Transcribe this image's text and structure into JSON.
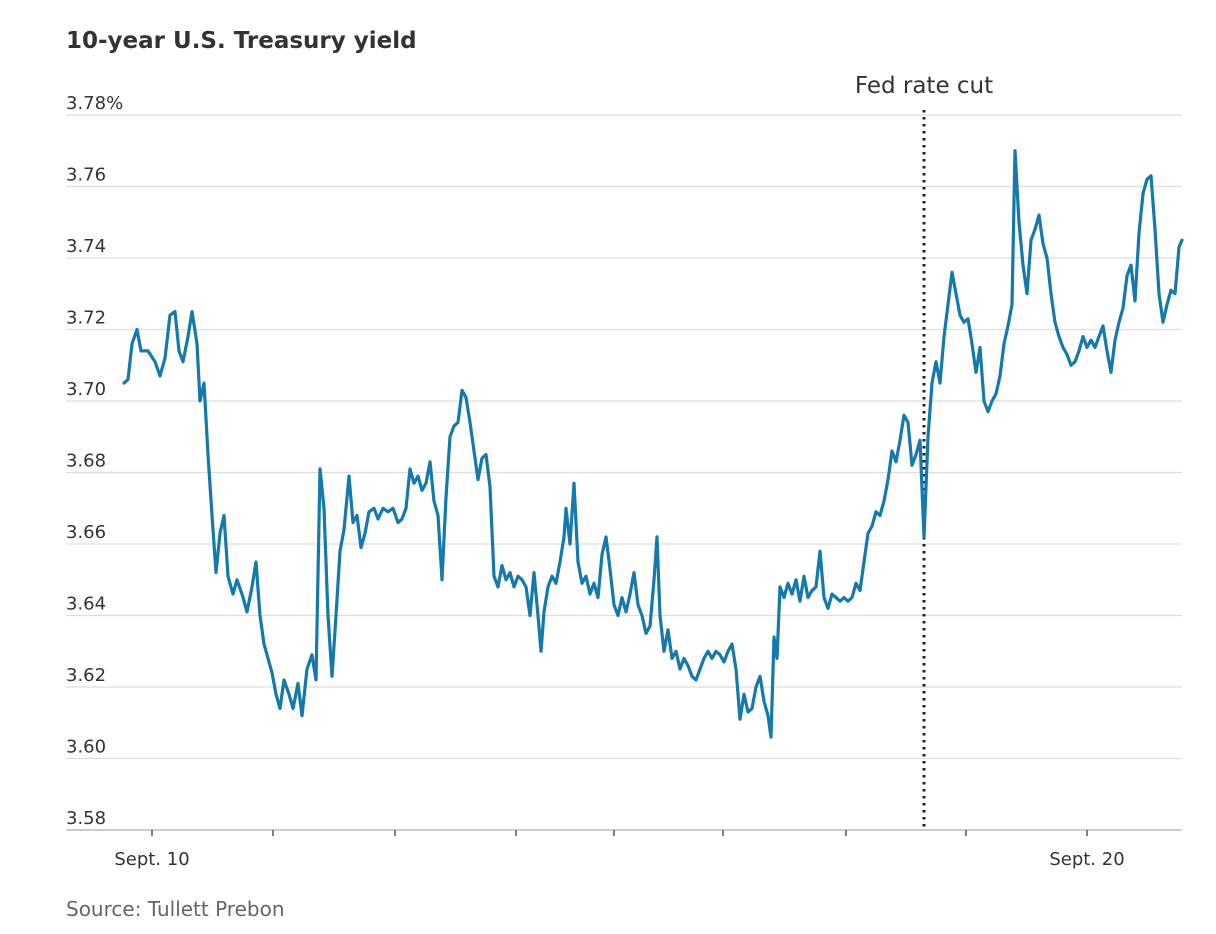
{
  "chart_data": {
    "type": "line",
    "title": "10-year U.S. Treasury yield",
    "source": "Source: Tullett Prebon",
    "color": "#1479ad",
    "grid": true,
    "annotation": {
      "label": "Fed rate cut",
      "x": 800
    },
    "xlim": [
      -58,
      1058
    ],
    "xticks": [
      {
        "value": 28,
        "label": "Sept. 10"
      },
      {
        "value": 149,
        "label": null
      },
      {
        "value": 271,
        "label": null
      },
      {
        "value": 392,
        "label": null
      },
      {
        "value": 490,
        "label": null
      },
      {
        "value": 599,
        "label": null
      },
      {
        "value": 722,
        "label": null
      },
      {
        "value": 842,
        "label": null
      },
      {
        "value": 963,
        "label": "Sept. 20"
      }
    ],
    "ylim": [
      3.58,
      3.78
    ],
    "yticks": [
      3.58,
      {
        "value": 3.6,
        "label": "3.60"
      },
      3.62,
      3.64,
      3.66,
      3.68,
      {
        "value": 3.7,
        "label": "3.70"
      },
      3.72,
      3.74,
      3.76,
      {
        "value": 3.78,
        "label": "3.78%"
      }
    ],
    "x": [
      0,
      4,
      8,
      13,
      17,
      24,
      31,
      36,
      41,
      46,
      51,
      55,
      59,
      64,
      68,
      73,
      76,
      80,
      84,
      88,
      92,
      96,
      100,
      104,
      109,
      113,
      118,
      123,
      128,
      132,
      136,
      140,
      144,
      148,
      152,
      156,
      160,
      165,
      169,
      174,
      178,
      183,
      188,
      192,
      196,
      200,
      204,
      208,
      212,
      216,
      220,
      225,
      229,
      233,
      237,
      241,
      245,
      250,
      254,
      259,
      264,
      269,
      274,
      278,
      282,
      286,
      290,
      294,
      298,
      302,
      306,
      310,
      314,
      318,
      322,
      326,
      330,
      334,
      338,
      342,
      346,
      350,
      354,
      358,
      362,
      366,
      370,
      374,
      378,
      382,
      386,
      390,
      394,
      398,
      402,
      406,
      410,
      414,
      417,
      420,
      424,
      428,
      432,
      436,
      440,
      442,
      446,
      450,
      454,
      458,
      462,
      466,
      470,
      474,
      478,
      482,
      486,
      490,
      494,
      498,
      502,
      506,
      510,
      514,
      518,
      522,
      526,
      530,
      533,
      536,
      540,
      544,
      548,
      552,
      556,
      560,
      564,
      568,
      572,
      576,
      580,
      584,
      588,
      592,
      596,
      600,
      604,
      608,
      612,
      616,
      620,
      624,
      628,
      632,
      636,
      640,
      644,
      647,
      650,
      653,
      656,
      660,
      664,
      668,
      672,
      676,
      680,
      684,
      688,
      692,
      696,
      700,
      704,
      708,
      712,
      716,
      720,
      724,
      728,
      732,
      736,
      740,
      744,
      748,
      752,
      756,
      760,
      764,
      768,
      772,
      776,
      780,
      784,
      788,
      792,
      796,
      800,
      804,
      808,
      812,
      816,
      820,
      824,
      828,
      832,
      836,
      840,
      844,
      848,
      852,
      856,
      860,
      864,
      868,
      872,
      876,
      880,
      884,
      888,
      891,
      895,
      899,
      903,
      907,
      911,
      915,
      919,
      923,
      927,
      931,
      935,
      939,
      943,
      947,
      951,
      955,
      959,
      963,
      967,
      971,
      975,
      979,
      983,
      987,
      991,
      995,
      999,
      1003,
      1007,
      1011,
      1015,
      1019,
      1023,
      1027,
      1031,
      1035,
      1039,
      1043,
      1047,
      1051,
      1055,
      1058
    ],
    "values": [
      3.705,
      3.706,
      3.716,
      3.72,
      3.714,
      3.714,
      3.711,
      3.707,
      3.712,
      3.724,
      3.725,
      3.714,
      3.711,
      3.718,
      3.725,
      3.716,
      3.7,
      3.705,
      3.685,
      3.668,
      3.652,
      3.663,
      3.668,
      3.651,
      3.646,
      3.65,
      3.646,
      3.641,
      3.648,
      3.655,
      3.64,
      3.632,
      3.628,
      3.624,
      3.618,
      3.614,
      3.622,
      3.618,
      3.614,
      3.621,
      3.612,
      3.625,
      3.629,
      3.622,
      3.681,
      3.67,
      3.64,
      3.623,
      3.64,
      3.658,
      3.664,
      3.679,
      3.666,
      3.668,
      3.659,
      3.663,
      3.669,
      3.67,
      3.667,
      3.67,
      3.669,
      3.67,
      3.666,
      3.667,
      3.67,
      3.681,
      3.677,
      3.679,
      3.675,
      3.677,
      3.683,
      3.672,
      3.668,
      3.65,
      3.673,
      3.69,
      3.693,
      3.694,
      3.703,
      3.701,
      3.694,
      3.686,
      3.678,
      3.684,
      3.685,
      3.676,
      3.651,
      3.648,
      3.654,
      3.65,
      3.652,
      3.648,
      3.651,
      3.65,
      3.648,
      3.64,
      3.652,
      3.64,
      3.63,
      3.641,
      3.648,
      3.651,
      3.649,
      3.655,
      3.662,
      3.67,
      3.66,
      3.677,
      3.655,
      3.649,
      3.651,
      3.646,
      3.649,
      3.645,
      3.657,
      3.662,
      3.653,
      3.643,
      3.64,
      3.645,
      3.641,
      3.646,
      3.652,
      3.643,
      3.64,
      3.635,
      3.637,
      3.65,
      3.662,
      3.64,
      3.63,
      3.636,
      3.628,
      3.63,
      3.625,
      3.628,
      3.626,
      3.623,
      3.622,
      3.625,
      3.628,
      3.63,
      3.628,
      3.63,
      3.629,
      3.627,
      3.63,
      3.632,
      3.625,
      3.611,
      3.618,
      3.613,
      3.614,
      3.62,
      3.623,
      3.616,
      3.612,
      3.606,
      3.634,
      3.628,
      3.648,
      3.645,
      3.649,
      3.646,
      3.65,
      3.644,
      3.651,
      3.645,
      3.647,
      3.648,
      3.658,
      3.645,
      3.642,
      3.646,
      3.645,
      3.644,
      3.645,
      3.644,
      3.645,
      3.649,
      3.647,
      3.655,
      3.663,
      3.665,
      3.669,
      3.668,
      3.672,
      3.678,
      3.686,
      3.683,
      3.689,
      3.696,
      3.694,
      3.682,
      3.685,
      3.689,
      3.662,
      3.69,
      3.705,
      3.711,
      3.705,
      3.718,
      3.727,
      3.736,
      3.73,
      3.724,
      3.722,
      3.723,
      3.716,
      3.708,
      3.715,
      3.7,
      3.697,
      3.7,
      3.702,
      3.707,
      3.716,
      3.721,
      3.727,
      3.77,
      3.75,
      3.738,
      3.73,
      3.745,
      3.748,
      3.752,
      3.744,
      3.74,
      3.73,
      3.722,
      3.718,
      3.715,
      3.713,
      3.71,
      3.711,
      3.714,
      3.718,
      3.715,
      3.717,
      3.715,
      3.718,
      3.721,
      3.714,
      3.708,
      3.717,
      3.722,
      3.726,
      3.735,
      3.738,
      3.728,
      3.747,
      3.758,
      3.762,
      3.763,
      3.748,
      3.73,
      3.722,
      3.727,
      3.731,
      3.73,
      3.743,
      3.745
    ]
  }
}
